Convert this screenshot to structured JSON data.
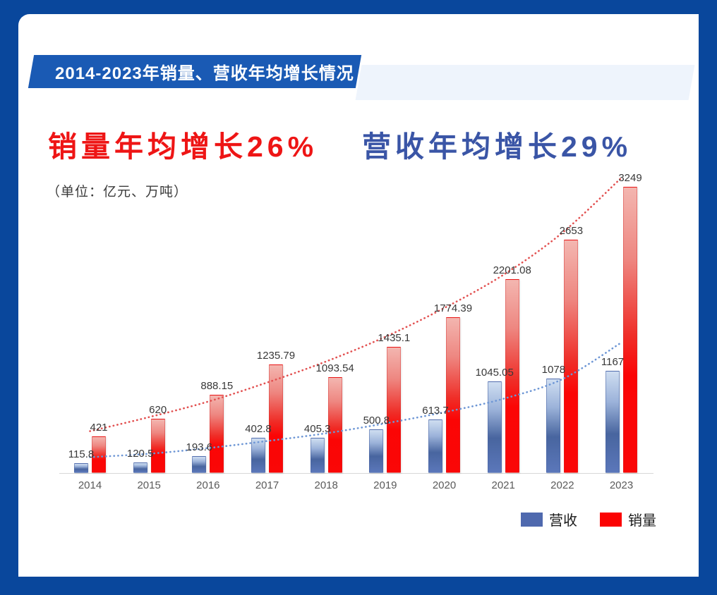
{
  "frame": {
    "background": "#09479c",
    "panel_background": "#ffffff"
  },
  "banner": {
    "title": "2014-2023年销量、营收年均增长情况",
    "background": "#1a5ab4",
    "backdrop_color": "#eef4fc",
    "text_color": "#ffffff"
  },
  "headline": {
    "sales_text": "销量年均增长26%",
    "sales_color": "#ee1515",
    "revenue_text": "营收年均增长29%",
    "revenue_color": "#3a55a6"
  },
  "unit_note": "（单位：亿元、万吨）",
  "chart_data": {
    "type": "bar",
    "title": "2014-2023年销量、营收年均增长情况",
    "categories": [
      "2014",
      "2015",
      "2016",
      "2017",
      "2018",
      "2019",
      "2020",
      "2021",
      "2022",
      "2023"
    ],
    "series": [
      {
        "name": "营收",
        "color": "#4f69ae",
        "values": [
          115.8,
          120.5,
          193.6,
          402.8,
          405.3,
          500.8,
          613.7,
          1045.05,
          1078,
          1167
        ],
        "labels": [
          "115.8",
          "120.5",
          "193.6",
          "402.8",
          "405.3",
          "500.8",
          "613.7",
          "1045.05",
          "1078",
          "1167"
        ],
        "trend_values": [
          184,
          223,
          287,
          367,
          455,
          567,
          694,
          846,
          1069,
          1484
        ],
        "trend_color": "#6d96d5"
      },
      {
        "name": "销量",
        "color": "#fb0303",
        "values": [
          421,
          620,
          888.15,
          1235.79,
          1093.54,
          1435.1,
          1774.39,
          2201.08,
          2653,
          3249
        ],
        "labels": [
          "421",
          "620",
          "888.15",
          "1235.79",
          "1093.54",
          "1435.1",
          "1774.39",
          "2201.08",
          "2653",
          "3249"
        ],
        "trend_values": [
          479,
          638,
          814,
          1030,
          1269,
          1548,
          1875,
          2251,
          2729,
          3352
        ],
        "trend_color": "#e25050"
      }
    ],
    "ylim": [
      0,
      3400
    ],
    "xlabel": "",
    "ylabel": "",
    "grid": false,
    "legend_position": "bottom-right",
    "trend_style": "dotted"
  },
  "legend": [
    {
      "label": "营收",
      "color": "#4f69ae"
    },
    {
      "label": "销量",
      "color": "#fb0303"
    }
  ]
}
